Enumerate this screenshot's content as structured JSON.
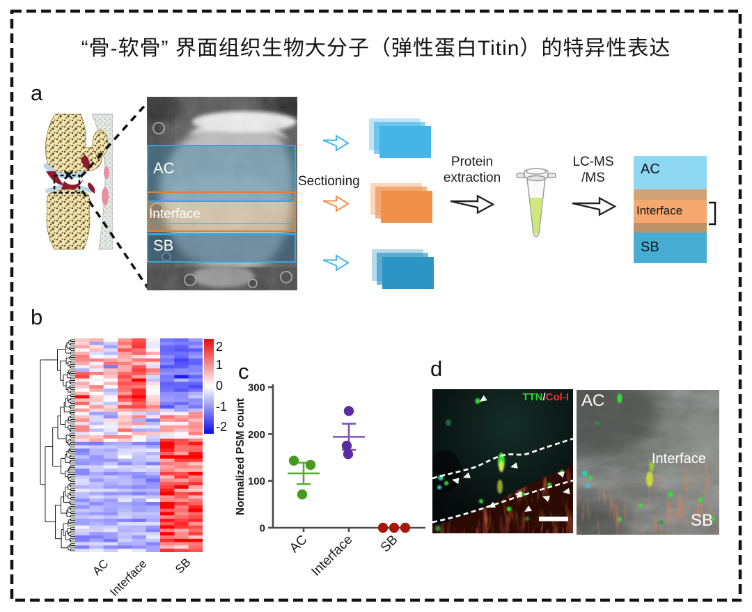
{
  "title": "“骨-软骨” 界面组织生物大分子（弹性蛋白Titin）的特异性表达",
  "panel_a": {
    "letter": "a",
    "sem_labels": {
      "ac": "AC",
      "interface": "Interface",
      "sb": "SB"
    },
    "sectioning_label": "Sectioning",
    "protein_extraction_label": "Protein extraction",
    "lcms_label": "LC-MS\n/MS",
    "result_labels": {
      "ac": "AC",
      "interface": "Interface",
      "sb": "SB"
    },
    "colors": {
      "ac_section": "#45b5e8",
      "interface_section": "#ef8f48",
      "sb_section": "#2d94c4",
      "result_ac": "#8ed8f3",
      "result_tan_top": "#d3a378",
      "result_interface": "#f5a96f",
      "result_tan_bottom": "#bf9166",
      "result_sb": "#47add2"
    }
  },
  "panel_b": {
    "letter": "b",
    "col_labels": [
      "AC",
      "Interface",
      "SB"
    ],
    "colorbar_ticks": [
      "2",
      "1",
      "0",
      "-1",
      "-2"
    ],
    "chart_data": {
      "type": "heatmap",
      "groups": [
        "AC",
        "Interface",
        "SB"
      ],
      "columns_per_group": 3,
      "value_range": [
        -2,
        2
      ],
      "colormap": {
        "high": "#e80c0c",
        "mid": "#ffffff",
        "low": "#0c0ce8"
      },
      "legend_position": "right",
      "row_dendrogram": true,
      "row_blocks": [
        {
          "rows": 22,
          "col_means": [
            0.5,
            0.3,
            -0.15,
            1.05,
            1.2,
            0.3,
            -1.1,
            -1.15,
            -1.05
          ],
          "col_noise": [
            0.95,
            0.9,
            0.85,
            0.75,
            0.7,
            0.8,
            0.35,
            0.3,
            0.35
          ]
        },
        {
          "rows": 9,
          "col_means": [
            0.1,
            0.0,
            0.1,
            0.35,
            0.25,
            -0.1,
            0.7,
            0.6,
            0.65
          ],
          "col_noise": [
            0.95,
            0.9,
            0.95,
            0.9,
            0.85,
            0.8,
            0.8,
            0.75,
            0.8
          ]
        },
        {
          "rows": 33,
          "col_means": [
            -0.62,
            -0.6,
            -0.62,
            -0.58,
            -0.62,
            -0.58,
            1.4,
            1.25,
            1.35
          ],
          "col_noise": [
            0.3,
            0.28,
            0.3,
            0.28,
            0.3,
            0.32,
            0.75,
            0.7,
            0.75
          ]
        }
      ]
    }
  },
  "panel_c": {
    "letter": "c",
    "chart_data": {
      "type": "scatter",
      "title": "",
      "ylabel": "Normalized PSM count",
      "xlabel": "",
      "ylim": [
        0,
        300
      ],
      "yticks": [
        0,
        100,
        200,
        300
      ],
      "categories": [
        "AC",
        "Interface",
        "SB"
      ],
      "error_bar": "mean ± SEM",
      "series": [
        {
          "name": "AC",
          "dot_color": "#459a1f",
          "line_color": "#55aa35",
          "points": [
            143,
            134,
            71
          ],
          "x_jitter": [
            -14,
            10,
            -2
          ],
          "mean": 116,
          "sem": 23
        },
        {
          "name": "Interface",
          "dot_color": "#5b2da0",
          "line_color": "#7a52b8",
          "points": [
            249,
            175,
            157
          ],
          "x_jitter": [
            0,
            -3,
            -1
          ],
          "mean": 194,
          "sem": 28
        },
        {
          "name": "SB",
          "dot_color": "#a6180c",
          "line_color": "#a6180c",
          "points": [
            0,
            0,
            0
          ],
          "x_jitter": [
            -16,
            0,
            16
          ],
          "mean": 0,
          "sem": 0
        }
      ]
    }
  },
  "panel_d": {
    "letter": "d",
    "left_image": {
      "stain_green": "TTN",
      "separator": "/",
      "stain_red": "Col-I",
      "stain_green_color": "#2bd52b",
      "stain_red_color": "#f23030"
    },
    "right_image": {
      "labels": {
        "ac": "AC",
        "interface": "Interface",
        "sb": "SB"
      }
    }
  }
}
